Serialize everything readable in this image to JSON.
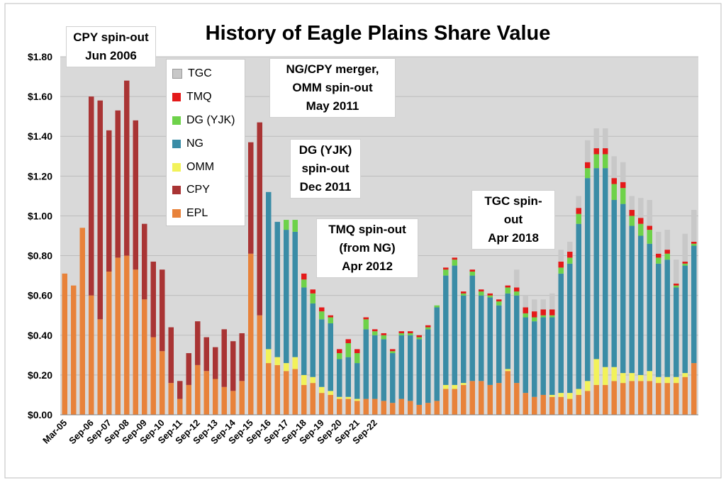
{
  "chart_data": {
    "type": "bar",
    "stacked": true,
    "title": "History of Eagle Plains Share Value",
    "yticks": [
      "$0.00",
      "$0.20",
      "$0.40",
      "$0.60",
      "$0.80",
      "$1.00",
      "$1.20",
      "$1.40",
      "$1.60",
      "$1.80"
    ],
    "ylim": [
      0,
      1.8
    ],
    "grid": true,
    "legend_placement": "top-left",
    "xticks": [
      "Mar-05",
      "Sep-06",
      "Sep-07",
      "Sep-08",
      "Sep-09",
      "Sep-10",
      "Sep-11",
      "Sep-12",
      "Sep-13",
      "Sep-14",
      "Sep-15",
      "Sep-16",
      "Sep-17",
      "Sep-18",
      "Sep-19",
      "Sep-20",
      "Sep-21",
      "Sep-22"
    ],
    "series_names": [
      "EPL",
      "CPY",
      "OMM",
      "NG",
      "DG (YJK)",
      "TMQ",
      "TGC"
    ],
    "legend_order": [
      "TGC",
      "TMQ",
      "DG (YJK)",
      "NG",
      "OMM",
      "CPY",
      "EPL"
    ],
    "colors": {
      "EPL": "#e8823a",
      "CPY": "#a93434",
      "OMM": "#f2f25a",
      "NG": "#3a8ca6",
      "DG (YJK)": "#6ed24a",
      "TMQ": "#e41a1a",
      "TGC": "#c8c8c8"
    },
    "bars": [
      [
        0.71,
        0,
        0,
        0,
        0,
        0,
        0
      ],
      [
        0.65,
        0,
        0,
        0,
        0,
        0,
        0
      ],
      [
        0.94,
        0,
        0,
        0,
        0,
        0,
        0
      ],
      [
        0.6,
        1.0,
        0,
        0,
        0,
        0,
        0
      ],
      [
        0.48,
        1.1,
        0,
        0,
        0,
        0,
        0
      ],
      [
        0.72,
        0.71,
        0,
        0,
        0,
        0,
        0
      ],
      [
        0.79,
        0.74,
        0,
        0,
        0,
        0,
        0
      ],
      [
        0.8,
        0.88,
        0,
        0,
        0,
        0,
        0
      ],
      [
        0.73,
        0.75,
        0,
        0,
        0,
        0,
        0
      ],
      [
        0.58,
        0.38,
        0,
        0,
        0,
        0,
        0
      ],
      [
        0.39,
        0.38,
        0,
        0,
        0,
        0,
        0
      ],
      [
        0.32,
        0.41,
        0,
        0,
        0,
        0,
        0
      ],
      [
        0.16,
        0.28,
        0,
        0,
        0,
        0,
        0
      ],
      [
        0.08,
        0.09,
        0,
        0,
        0,
        0,
        0
      ],
      [
        0.15,
        0.16,
        0,
        0,
        0,
        0,
        0
      ],
      [
        0.25,
        0.22,
        0,
        0,
        0,
        0,
        0
      ],
      [
        0.22,
        0.17,
        0,
        0,
        0,
        0,
        0
      ],
      [
        0.18,
        0.16,
        0,
        0,
        0,
        0,
        0
      ],
      [
        0.14,
        0.29,
        0,
        0,
        0,
        0,
        0
      ],
      [
        0.12,
        0.25,
        0,
        0,
        0,
        0,
        0
      ],
      [
        0.17,
        0.24,
        0,
        0,
        0,
        0,
        0
      ],
      [
        0.81,
        0.56,
        0,
        0,
        0,
        0,
        0
      ],
      [
        0.5,
        0.97,
        0,
        0,
        0,
        0,
        0
      ],
      [
        0.26,
        0,
        0.07,
        0.79,
        0,
        0,
        0
      ],
      [
        0.25,
        0,
        0.04,
        0.68,
        0,
        0,
        0
      ],
      [
        0.22,
        0,
        0.04,
        0.67,
        0.05,
        0,
        0
      ],
      [
        0.23,
        0,
        0.06,
        0.63,
        0.06,
        0,
        0
      ],
      [
        0.15,
        0,
        0.05,
        0.44,
        0.04,
        0.03,
        0
      ],
      [
        0.16,
        0,
        0.03,
        0.37,
        0.05,
        0.02,
        0
      ],
      [
        0.11,
        0,
        0.03,
        0.34,
        0.04,
        0.02,
        0
      ],
      [
        0.1,
        0,
        0.02,
        0.34,
        0.03,
        0.01,
        0
      ],
      [
        0.08,
        0,
        0.01,
        0.19,
        0.03,
        0.02,
        0
      ],
      [
        0.08,
        0,
        0.01,
        0.2,
        0.07,
        0.02,
        0
      ],
      [
        0.07,
        0,
        0.01,
        0.18,
        0.05,
        0.02,
        0
      ],
      [
        0.08,
        0,
        0,
        0.35,
        0.05,
        0.01,
        0
      ],
      [
        0.08,
        0,
        0,
        0.32,
        0.02,
        0.01,
        0
      ],
      [
        0.07,
        0,
        0,
        0.31,
        0.02,
        0.01,
        0
      ],
      [
        0.06,
        0,
        0,
        0.25,
        0.01,
        0.01,
        0
      ],
      [
        0.08,
        0,
        0,
        0.32,
        0.01,
        0.01,
        0
      ],
      [
        0.07,
        0,
        0,
        0.33,
        0.01,
        0.01,
        0
      ],
      [
        0.05,
        0,
        0,
        0.33,
        0.01,
        0.01,
        0
      ],
      [
        0.06,
        0,
        0,
        0.37,
        0.01,
        0.01,
        0
      ],
      [
        0.07,
        0,
        0,
        0.47,
        0.01,
        0,
        0
      ],
      [
        0.13,
        0,
        0.02,
        0.55,
        0.03,
        0.01,
        0
      ],
      [
        0.13,
        0,
        0.02,
        0.6,
        0.03,
        0.01,
        0
      ],
      [
        0.15,
        0,
        0.01,
        0.44,
        0.01,
        0.01,
        0
      ],
      [
        0.17,
        0,
        0,
        0.53,
        0.02,
        0.01,
        0
      ],
      [
        0.17,
        0,
        0,
        0.43,
        0.02,
        0.01,
        0
      ],
      [
        0.15,
        0,
        0,
        0.44,
        0.01,
        0.01,
        0
      ],
      [
        0.16,
        0,
        0,
        0.39,
        0.02,
        0.01,
        0
      ],
      [
        0.22,
        0,
        0.01,
        0.38,
        0.03,
        0.01,
        0
      ],
      [
        0.16,
        0,
        0,
        0.44,
        0.02,
        0.02,
        0.09
      ],
      [
        0.11,
        0,
        0,
        0.38,
        0.02,
        0.03,
        0.06
      ],
      [
        0.09,
        0,
        0,
        0.38,
        0.02,
        0.03,
        0.06
      ],
      [
        0.1,
        0,
        0,
        0.39,
        0.01,
        0.03,
        0.05
      ],
      [
        0.09,
        0,
        0.01,
        0.39,
        0.01,
        0.03,
        0.08
      ],
      [
        0.09,
        0,
        0.02,
        0.6,
        0.03,
        0.03,
        0.06
      ],
      [
        0.08,
        0,
        0.03,
        0.65,
        0.03,
        0.03,
        0.05
      ],
      [
        0.1,
        0,
        0.03,
        0.83,
        0.05,
        0.03,
        0.06
      ],
      [
        0.12,
        0,
        0.05,
        1.02,
        0.05,
        0.03,
        0.11
      ],
      [
        0.15,
        0,
        0.13,
        0.96,
        0.07,
        0.03,
        0.1
      ],
      [
        0.15,
        0,
        0.09,
        1.0,
        0.07,
        0.03,
        0.1
      ],
      [
        0.17,
        0,
        0.07,
        0.84,
        0.08,
        0.03,
        0.11
      ],
      [
        0.16,
        0,
        0.05,
        0.85,
        0.08,
        0.03,
        0.1
      ],
      [
        0.17,
        0,
        0.04,
        0.74,
        0.05,
        0.03,
        0.07
      ],
      [
        0.17,
        0,
        0.03,
        0.7,
        0.06,
        0.03,
        0.1
      ],
      [
        0.17,
        0,
        0.05,
        0.64,
        0.07,
        0.02,
        0.13
      ],
      [
        0.16,
        0,
        0.03,
        0.57,
        0.03,
        0.02,
        0.11
      ],
      [
        0.16,
        0,
        0.03,
        0.59,
        0.03,
        0.02,
        0.1
      ],
      [
        0.16,
        0,
        0.03,
        0.45,
        0.01,
        0.01,
        0.12
      ],
      [
        0.19,
        0,
        0.02,
        0.54,
        0.01,
        0.01,
        0.14
      ],
      [
        0.26,
        0,
        0,
        0.59,
        0.01,
        0.01,
        0.16
      ]
    ]
  },
  "annotations": {
    "cpy": [
      "CPY spin-out",
      "Jun 2006"
    ],
    "ng_merger": [
      "NG/CPY merger,",
      "OMM spin-out",
      "May 2011"
    ],
    "dg": [
      "DG (YJK)",
      "spin-out",
      "Dec 2011"
    ],
    "tmq": [
      "TMQ spin-out",
      "(from NG)",
      "Apr 2012"
    ],
    "tgc": [
      "TGC spin-out",
      "Apr 2018"
    ]
  }
}
